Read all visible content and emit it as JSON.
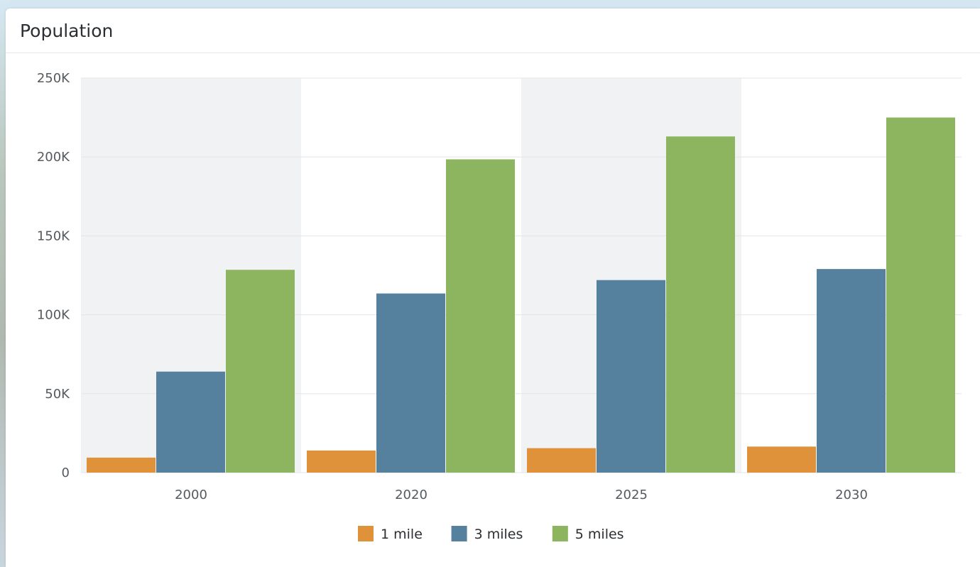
{
  "panel": {
    "title": "Population"
  },
  "chart_data": {
    "type": "bar",
    "title": "Population",
    "categories": [
      "2000",
      "2020",
      "2025",
      "2030"
    ],
    "series": [
      {
        "name": "1 mile",
        "color": "#e0923a",
        "values": [
          9500,
          14000,
          15500,
          16500
        ]
      },
      {
        "name": "3 miles",
        "color": "#55819f",
        "values": [
          64000,
          113500,
          122000,
          129000
        ]
      },
      {
        "name": "5 miles",
        "color": "#8db45e",
        "values": [
          128500,
          198500,
          213000,
          225000
        ]
      }
    ],
    "ylim": [
      0,
      250000
    ],
    "yticks": [
      0,
      50000,
      100000,
      150000,
      200000,
      250000
    ],
    "ytick_labels": [
      "0",
      "50K",
      "100K",
      "150K",
      "200K",
      "250K"
    ],
    "grid": true,
    "alternate_band_color": "#f1f2f3",
    "legend_position": "bottom-center"
  }
}
